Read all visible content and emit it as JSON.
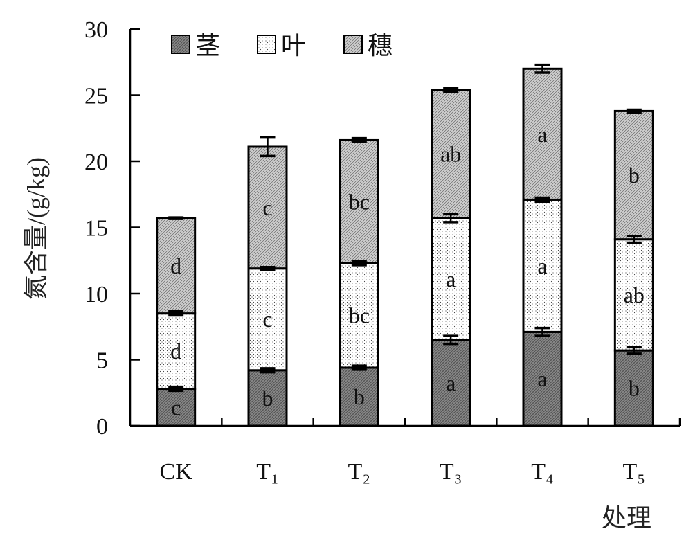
{
  "chart_data": {
    "type": "bar",
    "stacked": true,
    "categories": [
      "CK",
      "T₁",
      "T₂",
      "T₃",
      "T₄",
      "T₅"
    ],
    "xlabel": "处理",
    "ylabel": "氮含量/(g/kg)",
    "ylim": [
      0,
      30
    ],
    "yticks": [
      0,
      5,
      10,
      15,
      20,
      25,
      30
    ],
    "legend": "top-left",
    "grid": false,
    "series": [
      {
        "name": "茎",
        "color": "#8c8c8c",
        "values": [
          2.8,
          4.2,
          4.4,
          6.5,
          7.1,
          5.7
        ],
        "errors": [
          0.15,
          0.15,
          0.15,
          0.3,
          0.3,
          0.25
        ],
        "letters": [
          "c",
          "b",
          "b",
          "a",
          "a",
          "b"
        ]
      },
      {
        "name": "叶",
        "color": "#ffffff",
        "values": [
          5.7,
          7.7,
          7.9,
          9.2,
          10.0,
          8.4
        ],
        "errors": [
          0.15,
          0.1,
          0.15,
          0.3,
          0.15,
          0.25
        ],
        "letters": [
          "d",
          "c",
          "bc",
          "a",
          "a",
          "ab"
        ]
      },
      {
        "name": "穗",
        "color": "#d0d0d0",
        "values": [
          7.2,
          9.2,
          9.3,
          9.7,
          9.9,
          9.7
        ],
        "errors": [
          0.05,
          0.7,
          0.15,
          0.15,
          0.3,
          0.1
        ],
        "letters": [
          "d",
          "c",
          "bc",
          "ab",
          "a",
          "b"
        ]
      }
    ]
  }
}
